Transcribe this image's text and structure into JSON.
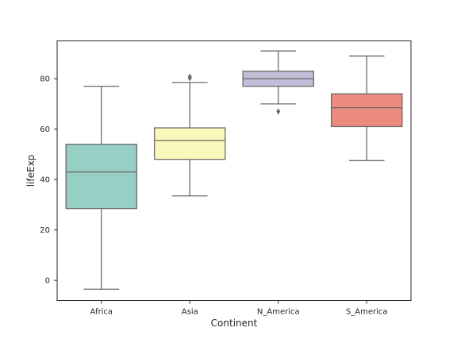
{
  "chart_data": {
    "type": "box",
    "xlabel": "Continent",
    "ylabel": "lifeExp",
    "ylim": [
      -8,
      95
    ],
    "yticks": [
      0,
      20,
      40,
      60,
      80
    ],
    "grid": false,
    "categories": [
      "Africa",
      "Asia",
      "N_America",
      "S_America"
    ],
    "colors": {
      "Africa": "#98cfc5",
      "Asia": "#f9f8bb",
      "N_America": "#c1bed8",
      "S_America": "#ec8b7e",
      "box_line": "#6b6b6b",
      "axis_line": "#262626"
    },
    "boxes": [
      {
        "category": "Africa",
        "whisker_low": -3.5,
        "q1": 28.5,
        "median": 43,
        "q3": 54,
        "whisker_high": 77,
        "outliers": []
      },
      {
        "category": "Asia",
        "whisker_low": 33.5,
        "q1": 48,
        "median": 55.5,
        "q3": 60.5,
        "whisker_high": 78.5,
        "outliers": [
          80.2,
          80.8
        ]
      },
      {
        "category": "N_America",
        "whisker_low": 70,
        "q1": 77,
        "median": 80,
        "q3": 83,
        "whisker_high": 91,
        "outliers": [
          67
        ]
      },
      {
        "category": "S_America",
        "whisker_low": 47.5,
        "q1": 61,
        "median": 68.5,
        "q3": 74,
        "whisker_high": 89,
        "outliers": []
      }
    ]
  }
}
